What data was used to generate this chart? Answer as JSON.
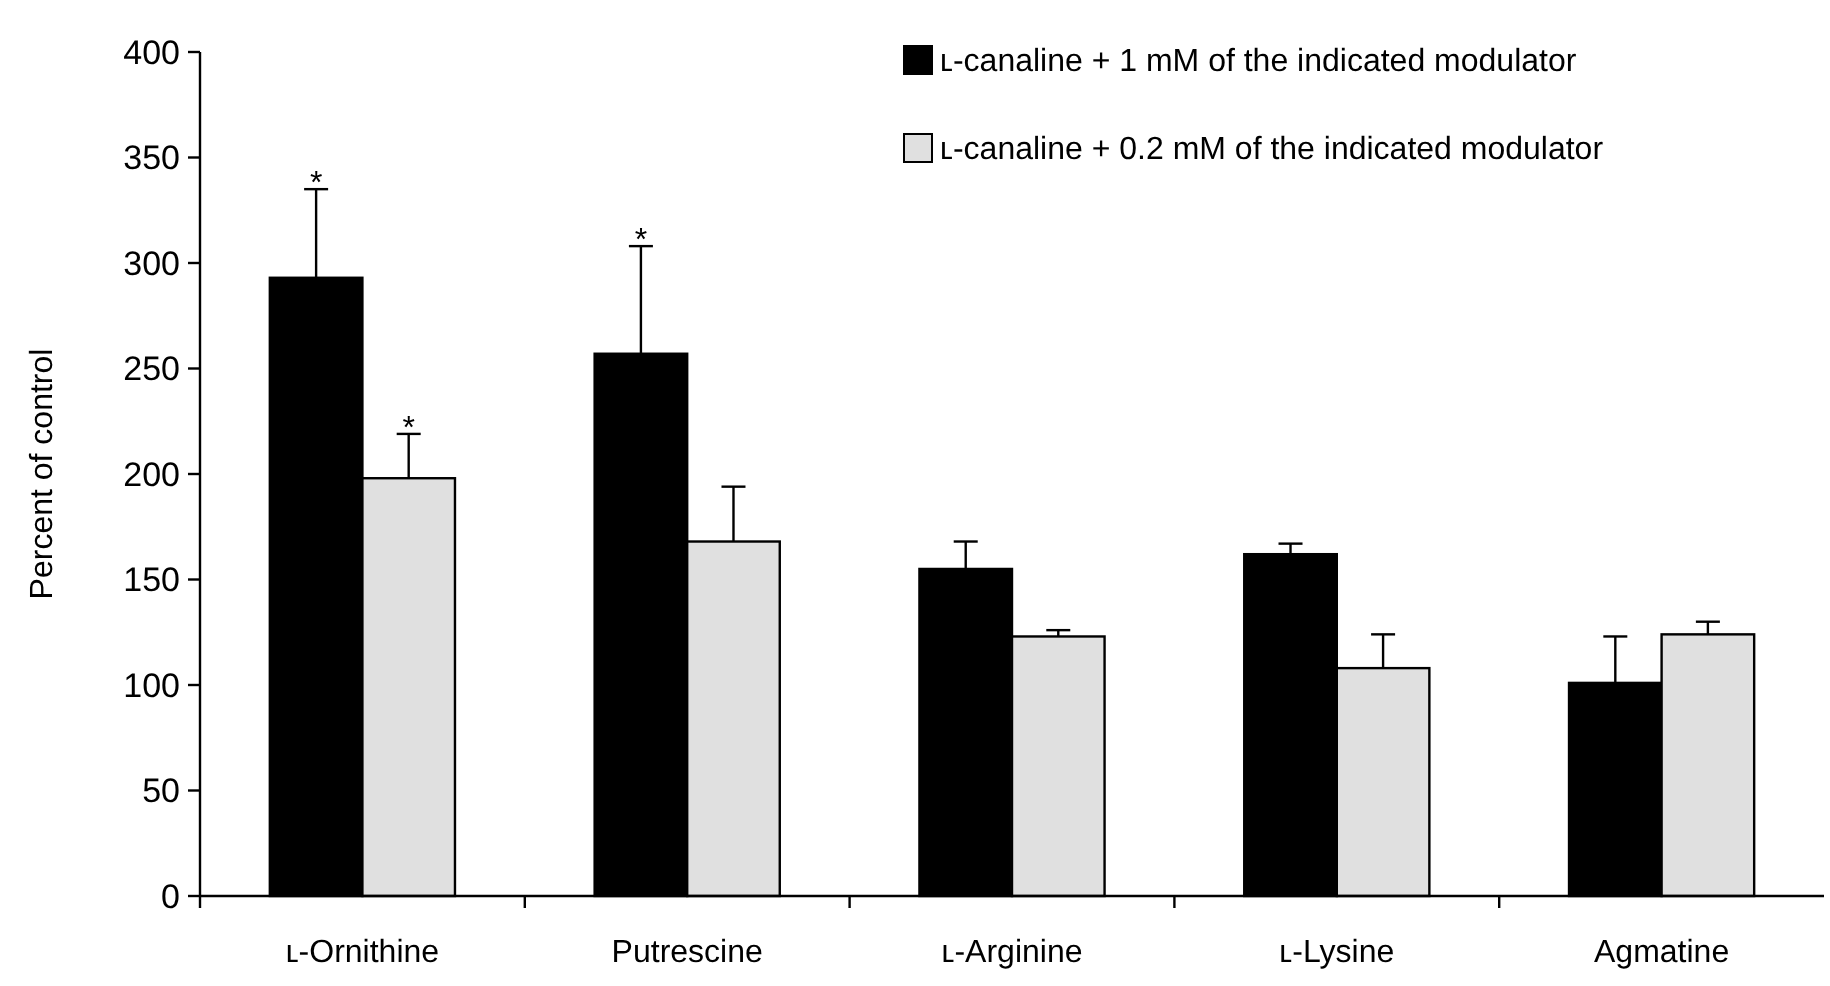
{
  "chart_data": {
    "type": "bar",
    "ylabel": "Percent of control",
    "categories": [
      "ʟ-Ornithine",
      "Putrescine",
      "ʟ-Arginine",
      "ʟ-Lysine",
      "Agmatine"
    ],
    "series": [
      {
        "name": "ʟ-canaline + 1 mM of the indicated modulator",
        "color": "#000000",
        "values": [
          293,
          257,
          155,
          162,
          101
        ],
        "value_labels": [
          "*",
          "*",
          null,
          null,
          null
        ],
        "errors": [
          [
            293,
            335
          ],
          [
            257,
            308
          ],
          [
            155,
            168
          ],
          [
            162,
            167
          ],
          [
            101,
            123
          ]
        ]
      },
      {
        "name": "ʟ-canaline + 0.2 mM of the indicated modulator",
        "color": "#e0e0e0",
        "values": [
          198,
          168,
          123,
          108,
          124
        ],
        "value_labels": [
          "*",
          null,
          null,
          null,
          null
        ],
        "errors": [
          [
            198,
            219
          ],
          [
            168,
            194
          ],
          [
            123,
            126
          ],
          [
            108,
            124
          ],
          [
            124,
            130
          ]
        ]
      }
    ],
    "ylim": [
      0,
      400
    ],
    "yticks": [
      0,
      50,
      100,
      150,
      200,
      250,
      300,
      350,
      400
    ],
    "grid": false,
    "legend": "top right"
  }
}
